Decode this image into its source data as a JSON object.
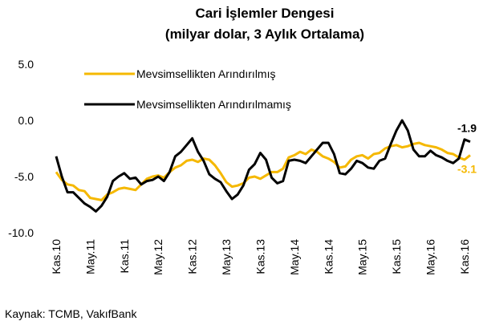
{
  "chart_data": {
    "type": "line",
    "title": "Cari İşlemler Dengesi",
    "subtitle": "(milyar dolar, 3 Aylık Ortalama)",
    "source": "Kaynak: TCMB, VakıfBank",
    "categories": [
      "Kas.10",
      null,
      null,
      null,
      null,
      null,
      "May.11",
      null,
      null,
      null,
      null,
      null,
      "Kas.11",
      null,
      null,
      null,
      null,
      null,
      "May.12",
      null,
      null,
      null,
      null,
      null,
      "Kas.12",
      null,
      null,
      null,
      null,
      null,
      "May.13",
      null,
      null,
      null,
      null,
      null,
      "Kas.13",
      null,
      null,
      null,
      null,
      null,
      "May.14",
      null,
      null,
      null,
      null,
      null,
      "Kas.14",
      null,
      null,
      null,
      null,
      null,
      "May.15",
      null,
      null,
      null,
      null,
      null,
      "Kas.15",
      null,
      null,
      null,
      null,
      null,
      "May.16",
      null,
      null,
      null,
      null,
      null,
      "Kas.16",
      null
    ],
    "series": [
      {
        "name": "Mevsimsellikten Arındırılmış",
        "color": "#f5b800",
        "values": [
          -4.6,
          -5.3,
          -5.7,
          -5.8,
          -6.2,
          -6.3,
          -6.9,
          -7.0,
          -7.1,
          -6.6,
          -6.4,
          -6.1,
          -6.0,
          -6.1,
          -6.2,
          -5.7,
          -5.2,
          -5.0,
          -4.9,
          -5.1,
          -4.6,
          -4.2,
          -4.0,
          -3.6,
          -3.5,
          -3.7,
          -3.4,
          -3.5,
          -4.0,
          -4.7,
          -5.5,
          -5.9,
          -5.8,
          -5.6,
          -5.1,
          -5.0,
          -5.2,
          -4.9,
          -4.6,
          -4.6,
          -4.3,
          -3.3,
          -3.1,
          -2.8,
          -3.0,
          -2.6,
          -2.8,
          -3.2,
          -3.4,
          -3.7,
          -4.2,
          -4.1,
          -3.5,
          -3.2,
          -3.1,
          -3.4,
          -3.0,
          -2.9,
          -2.5,
          -2.3,
          -2.2,
          -2.4,
          -2.3,
          -2.1,
          -2.0,
          -2.2,
          -2.3,
          -2.4,
          -2.6,
          -2.9,
          -3.0,
          -3.3,
          -3.5,
          -3.1
        ],
        "value_labels": [
          null,
          null,
          null,
          null,
          null,
          null,
          null,
          null,
          null,
          null,
          null,
          null,
          null,
          null,
          null,
          null,
          null,
          null,
          null,
          null,
          null,
          null,
          null,
          null,
          null,
          null,
          null,
          null,
          null,
          null,
          null,
          null,
          null,
          null,
          null,
          null,
          null,
          null,
          null,
          null,
          null,
          null,
          null,
          null,
          null,
          null,
          null,
          null,
          null,
          null,
          null,
          null,
          null,
          null,
          null,
          null,
          null,
          null,
          null,
          null,
          null,
          null,
          null,
          null,
          null,
          null,
          null,
          null,
          null,
          null,
          null,
          null,
          null,
          "-3.1"
        ]
      },
      {
        "name": "Mevsimsellikten Arındırılmamış",
        "color": "#000000",
        "values": [
          -3.2,
          -5.0,
          -6.4,
          -6.4,
          -6.9,
          -7.4,
          -7.7,
          -8.1,
          -7.6,
          -6.8,
          -5.4,
          -5.0,
          -4.7,
          -5.2,
          -5.1,
          -5.7,
          -5.4,
          -5.3,
          -5.0,
          -5.4,
          -4.6,
          -3.2,
          -2.8,
          -2.2,
          -1.6,
          -2.8,
          -3.6,
          -4.8,
          -5.2,
          -5.5,
          -6.3,
          -7.0,
          -6.6,
          -5.8,
          -4.4,
          -3.9,
          -2.9,
          -3.5,
          -5.1,
          -5.6,
          -5.4,
          -3.6,
          -3.5,
          -3.6,
          -3.8,
          -3.2,
          -2.6,
          -2.0,
          -2.0,
          -3.0,
          -4.7,
          -4.8,
          -4.3,
          -3.6,
          -3.8,
          -4.2,
          -4.3,
          -3.6,
          -3.4,
          -2.1,
          -0.9,
          0.0,
          -0.9,
          -2.6,
          -3.2,
          -3.2,
          -2.7,
          -3.1,
          -3.3,
          -3.6,
          -3.8,
          -3.4,
          -1.7,
          -1.9
        ],
        "value_labels": [
          null,
          null,
          null,
          null,
          null,
          null,
          null,
          null,
          null,
          null,
          null,
          null,
          null,
          null,
          null,
          null,
          null,
          null,
          null,
          null,
          null,
          null,
          null,
          null,
          null,
          null,
          null,
          null,
          null,
          null,
          null,
          null,
          null,
          null,
          null,
          null,
          null,
          null,
          null,
          null,
          null,
          null,
          null,
          null,
          null,
          null,
          null,
          null,
          null,
          null,
          null,
          null,
          null,
          null,
          null,
          null,
          null,
          null,
          null,
          null,
          null,
          null,
          null,
          null,
          null,
          null,
          null,
          null,
          null,
          null,
          null,
          null,
          null,
          "-1.9"
        ]
      }
    ],
    "ylim": [
      -10,
      5
    ],
    "yticks": [
      {
        "value": 5,
        "label": "5.0"
      },
      {
        "value": 0,
        "label": "0.0"
      },
      {
        "value": -5,
        "label": "-5.0"
      },
      {
        "value": -10,
        "label": "-10.0"
      }
    ],
    "grid": false
  }
}
